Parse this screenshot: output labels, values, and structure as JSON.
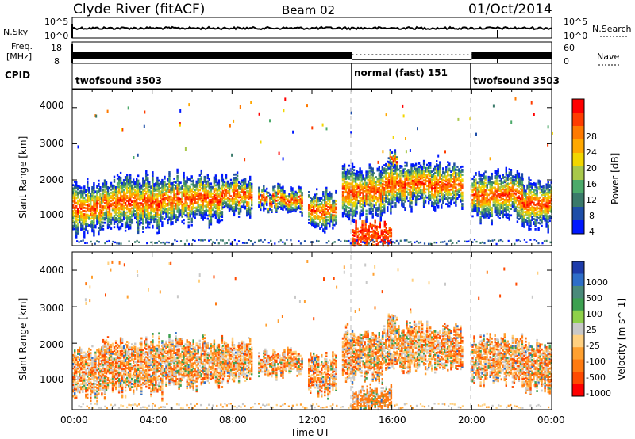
{
  "header": {
    "station": "Clyde River (fitACF)",
    "beam": "Beam 02",
    "date": "01/Oct/2014"
  },
  "noise_panel": {
    "left_label": "N.Sky",
    "left_ticks": [
      "10^5",
      "10^0"
    ],
    "right_ticks": [
      "10^5",
      "10^0"
    ],
    "right_label": "N.Search"
  },
  "freq_panel": {
    "left_label_line1": "Freq.",
    "left_label_line2": "[MHz]",
    "left_ticks": [
      "18",
      "8"
    ],
    "right_ticks": [
      "60",
      "0"
    ],
    "right_label": "Nave"
  },
  "cpid_panel": {
    "label": "CPID",
    "segments": [
      {
        "name": "twofsound 3503",
        "start_hour": 0,
        "end_hour": 14
      },
      {
        "name": "normal (fast) 151",
        "start_hour": 14,
        "end_hour": 20
      },
      {
        "name": "twofsound 3503",
        "start_hour": 20,
        "end_hour": 24
      }
    ]
  },
  "power_panel": {
    "ylabel": "Slant Range [km]",
    "colorbar_label": "Power [dB]",
    "colorbar_ticks": [
      "28",
      "24",
      "20",
      "16",
      "12",
      "8",
      "4"
    ],
    "colorbar_colors": [
      "#ff0000",
      "#ff3c00",
      "#ff7a00",
      "#ffa800",
      "#f2d600",
      "#a8c84a",
      "#4caa6a",
      "#3a7a6a",
      "#1e4ea8",
      "#0018ff"
    ]
  },
  "velocity_panel": {
    "ylabel": "Slant Range [km]",
    "colorbar_label": "Velocity [m s^-1]",
    "colorbar_ticks": [
      "1000",
      "500",
      "100",
      "25",
      "-25",
      "-100",
      "-500",
      "-1000"
    ],
    "colorbar_colors": [
      "#1e3caa",
      "#2e6ec8",
      "#4a8a7a",
      "#3ca050",
      "#8ed04a",
      "#c8c8c8",
      "#ffd080",
      "#ffa030",
      "#ff7a10",
      "#ff4a00",
      "#ff0000"
    ]
  },
  "axes": {
    "y_ticks": [
      "4000",
      "3000",
      "2000",
      "1000"
    ],
    "x_ticks": [
      "00:00",
      "04:00",
      "08:00",
      "12:00",
      "16:00",
      "20:00",
      "00:00"
    ],
    "xlabel": "Time UT"
  },
  "chart_data": {
    "type": "heatmap",
    "title": "Clyde River (fitACF)   Beam 02   01/Oct/2014",
    "xlabel": "Time UT",
    "ylabel": "Slant Range [km]",
    "x_range_hours": [
      0,
      24
    ],
    "ylim": [
      180,
      4500
    ],
    "panels": [
      {
        "name": "Power",
        "unit": "dB",
        "color_range": [
          0,
          30
        ]
      },
      {
        "name": "Velocity",
        "unit": "m s^-1",
        "color_range": [
          -1000,
          1000
        ]
      }
    ]
  }
}
